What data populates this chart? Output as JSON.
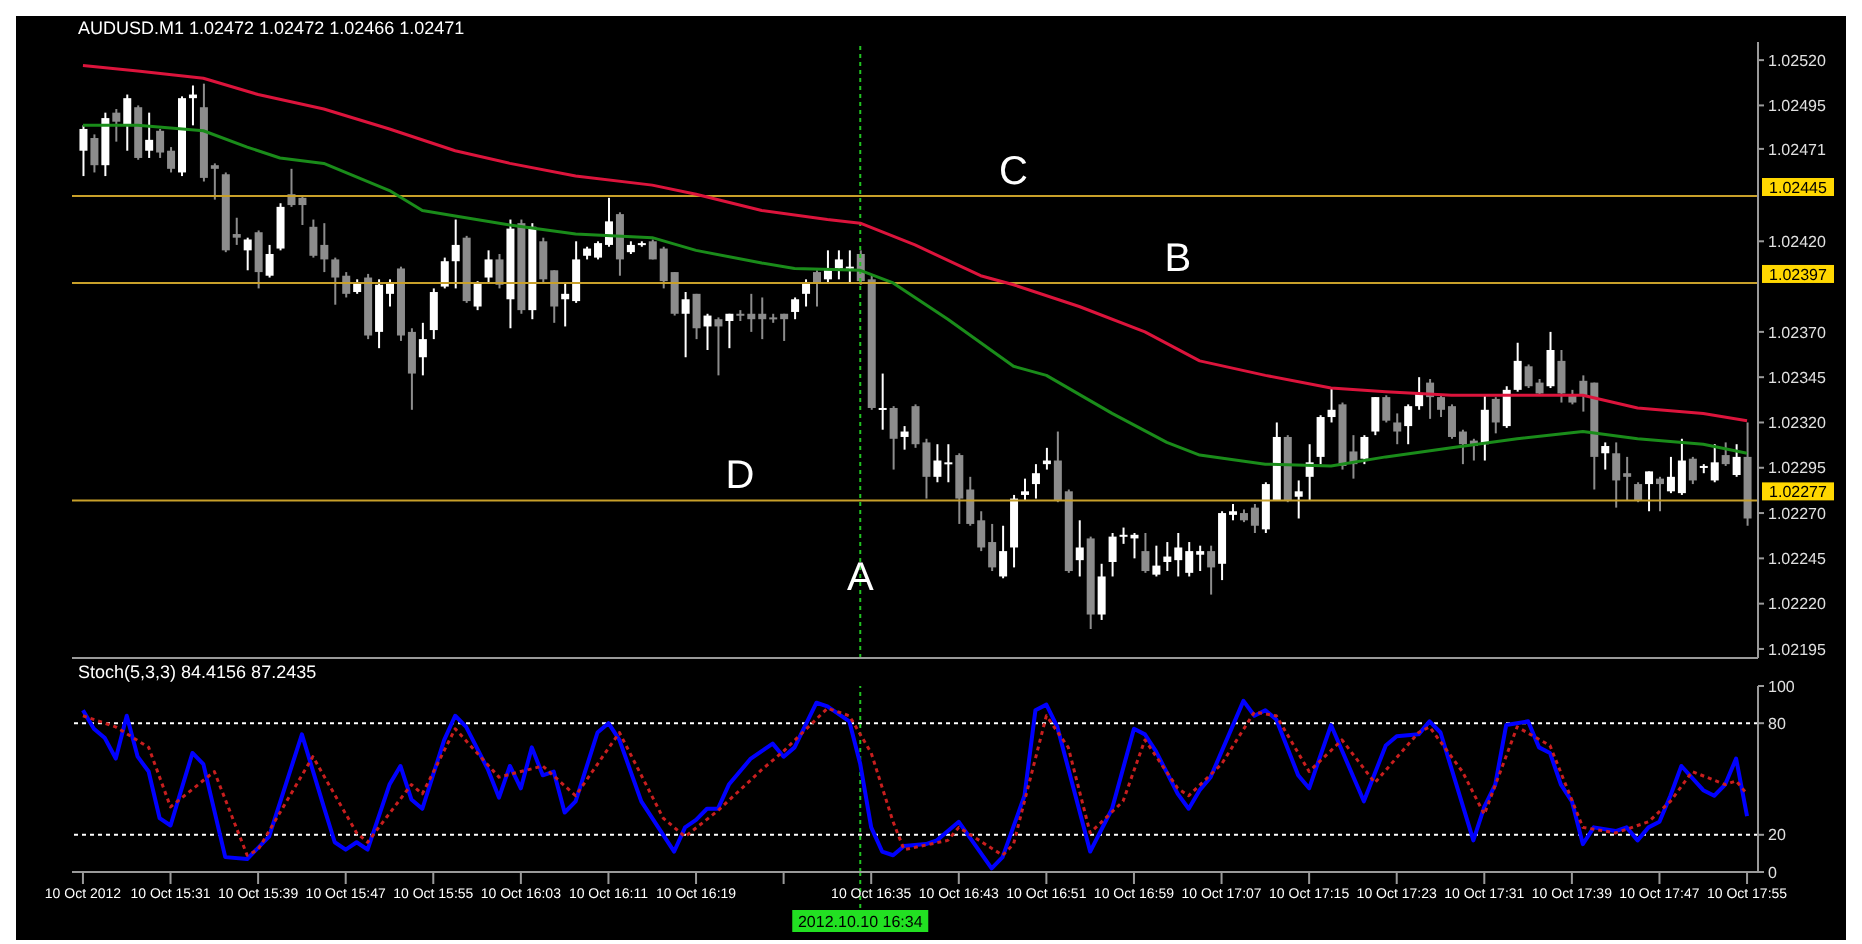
{
  "chart_data": [
    {
      "type": "candlestick",
      "title": "AUDUSD.M1 1.02472 1.02472 1.02466 1.02471",
      "x": [
        "2012-10-10T15:23",
        "2012-10-10T15:24",
        "2012-10-10T15:25",
        "2012-10-10T15:26",
        "2012-10-10T15:27",
        "2012-10-10T15:28",
        "2012-10-10T15:29",
        "2012-10-10T15:30",
        "2012-10-10T15:31",
        "2012-10-10T15:32",
        "2012-10-10T15:33",
        "2012-10-10T15:34",
        "2012-10-10T15:35",
        "2012-10-10T15:36",
        "2012-10-10T15:37",
        "2012-10-10T15:38",
        "2012-10-10T15:39",
        "2012-10-10T15:40",
        "2012-10-10T15:41",
        "2012-10-10T15:42",
        "2012-10-10T15:43",
        "2012-10-10T15:44",
        "2012-10-10T15:45",
        "2012-10-10T15:46",
        "2012-10-10T15:47",
        "2012-10-10T15:48",
        "2012-10-10T15:49",
        "2012-10-10T15:50",
        "2012-10-10T15:51",
        "2012-10-10T15:52",
        "2012-10-10T15:53",
        "2012-10-10T15:54",
        "2012-10-10T15:55",
        "2012-10-10T15:56",
        "2012-10-10T15:57",
        "2012-10-10T15:58",
        "2012-10-10T15:59",
        "2012-10-10T16:00",
        "2012-10-10T16:01",
        "2012-10-10T16:02",
        "2012-10-10T16:03",
        "2012-10-10T16:04",
        "2012-10-10T16:05",
        "2012-10-10T16:06",
        "2012-10-10T16:07",
        "2012-10-10T16:08",
        "2012-10-10T16:09",
        "2012-10-10T16:10",
        "2012-10-10T16:11",
        "2012-10-10T16:12",
        "2012-10-10T16:13",
        "2012-10-10T16:14",
        "2012-10-10T16:15",
        "2012-10-10T16:16",
        "2012-10-10T16:17",
        "2012-10-10T16:18",
        "2012-10-10T16:19",
        "2012-10-10T16:20",
        "2012-10-10T16:21",
        "2012-10-10T16:22",
        "2012-10-10T16:23",
        "2012-10-10T16:24",
        "2012-10-10T16:25",
        "2012-10-10T16:26",
        "2012-10-10T16:27",
        "2012-10-10T16:28",
        "2012-10-10T16:29",
        "2012-10-10T16:30",
        "2012-10-10T16:31",
        "2012-10-10T16:32",
        "2012-10-10T16:33",
        "2012-10-10T16:34",
        "2012-10-10T16:35",
        "2012-10-10T16:36",
        "2012-10-10T16:37",
        "2012-10-10T16:38",
        "2012-10-10T16:39",
        "2012-10-10T16:40",
        "2012-10-10T16:41",
        "2012-10-10T16:42",
        "2012-10-10T16:43",
        "2012-10-10T16:44",
        "2012-10-10T16:45",
        "2012-10-10T16:46",
        "2012-10-10T16:47",
        "2012-10-10T16:48",
        "2012-10-10T16:49",
        "2012-10-10T16:50",
        "2012-10-10T16:51",
        "2012-10-10T16:52",
        "2012-10-10T16:53",
        "2012-10-10T16:54",
        "2012-10-10T16:55",
        "2012-10-10T16:56",
        "2012-10-10T16:57",
        "2012-10-10T16:58",
        "2012-10-10T16:59",
        "2012-10-10T17:00",
        "2012-10-10T17:01",
        "2012-10-10T17:02",
        "2012-10-10T17:03",
        "2012-10-10T17:04",
        "2012-10-10T17:05",
        "2012-10-10T17:06",
        "2012-10-10T17:07",
        "2012-10-10T17:08",
        "2012-10-10T17:09",
        "2012-10-10T17:10",
        "2012-10-10T17:11",
        "2012-10-10T17:12",
        "2012-10-10T17:13",
        "2012-10-10T17:14",
        "2012-10-10T17:15",
        "2012-10-10T17:16",
        "2012-10-10T17:17",
        "2012-10-10T17:18",
        "2012-10-10T17:19",
        "2012-10-10T17:20",
        "2012-10-10T17:21",
        "2012-10-10T17:22",
        "2012-10-10T17:23",
        "2012-10-10T17:24",
        "2012-10-10T17:25",
        "2012-10-10T17:26",
        "2012-10-10T17:27",
        "2012-10-10T17:28",
        "2012-10-10T17:29",
        "2012-10-10T17:30",
        "2012-10-10T17:31",
        "2012-10-10T17:32",
        "2012-10-10T17:33",
        "2012-10-10T17:34",
        "2012-10-10T17:35",
        "2012-10-10T17:36",
        "2012-10-10T17:37",
        "2012-10-10T17:38",
        "2012-10-10T17:39",
        "2012-10-10T17:40",
        "2012-10-10T17:41",
        "2012-10-10T17:42",
        "2012-10-10T17:43",
        "2012-10-10T17:44",
        "2012-10-10T17:45",
        "2012-10-10T17:46",
        "2012-10-10T17:47",
        "2012-10-10T17:48",
        "2012-10-10T17:49",
        "2012-10-10T17:50",
        "2012-10-10T17:51",
        "2012-10-10T17:52",
        "2012-10-10T17:53",
        "2012-10-10T17:54",
        "2012-10-10T17:55"
      ],
      "ohlc": [
        [
          1.0247,
          1.02484,
          1.02456,
          1.02482
        ],
        [
          1.02477,
          1.02479,
          1.02458,
          1.02462
        ],
        [
          1.02462,
          1.02491,
          1.02456,
          1.02488
        ],
        [
          1.02491,
          1.02493,
          1.02475,
          1.02486
        ],
        [
          1.02484,
          1.02501,
          1.0247,
          1.02499
        ],
        [
          1.02494,
          1.02495,
          1.02465,
          1.02466
        ],
        [
          1.0247,
          1.02491,
          1.02466,
          1.02476
        ],
        [
          1.02481,
          1.02482,
          1.02466,
          1.02469
        ],
        [
          1.0247,
          1.02472,
          1.02458,
          1.0246
        ],
        [
          1.02458,
          1.025,
          1.02456,
          1.02499
        ],
        [
          1.02499,
          1.02506,
          1.02484,
          1.02501
        ],
        [
          1.02494,
          1.02507,
          1.02453,
          1.02455
        ],
        [
          1.02462,
          1.02463,
          1.02443,
          1.0246
        ],
        [
          1.02457,
          1.02458,
          1.02414,
          1.02415
        ],
        [
          1.02424,
          1.02433,
          1.02418,
          1.02422
        ],
        [
          1.02415,
          1.02422,
          1.02404,
          1.02421
        ],
        [
          1.02425,
          1.02426,
          1.02394,
          1.02403
        ],
        [
          1.02401,
          1.02418,
          1.024,
          1.02413
        ],
        [
          1.02416,
          1.02441,
          1.02415,
          1.02439
        ],
        [
          1.02446,
          1.0246,
          1.02439,
          1.0244
        ],
        [
          1.02444,
          1.02445,
          1.02429,
          1.0244
        ],
        [
          1.02428,
          1.02432,
          1.02411,
          1.02412
        ],
        [
          1.02418,
          1.0243,
          1.02403,
          1.0241
        ],
        [
          1.0241,
          1.02411,
          1.02385,
          1.024
        ],
        [
          1.02401,
          1.02403,
          1.02389,
          1.02391
        ],
        [
          1.02392,
          1.02399,
          1.02391,
          1.02397
        ],
        [
          1.024,
          1.02402,
          1.02366,
          1.02368
        ],
        [
          1.0237,
          1.02399,
          1.02361,
          1.02396
        ],
        [
          1.02391,
          1.02399,
          1.02384,
          1.02397
        ],
        [
          1.02405,
          1.02406,
          1.02365,
          1.02368
        ],
        [
          1.0237,
          1.02372,
          1.02327,
          1.02347
        ],
        [
          1.02356,
          1.02375,
          1.02346,
          1.02366
        ],
        [
          1.02371,
          1.02394,
          1.02366,
          1.02392
        ],
        [
          1.02395,
          1.02411,
          1.02394,
          1.02409
        ],
        [
          1.02409,
          1.02432,
          1.02394,
          1.02418
        ],
        [
          1.02422,
          1.02423,
          1.02386,
          1.02387
        ],
        [
          1.02384,
          1.02398,
          1.02382,
          1.02397
        ],
        [
          1.024,
          1.02415,
          1.02397,
          1.0241
        ],
        [
          1.0241,
          1.02413,
          1.02394,
          1.02396
        ],
        [
          1.02388,
          1.02432,
          1.02372,
          1.02427
        ],
        [
          1.0243,
          1.02432,
          1.0238,
          1.02382
        ],
        [
          1.02382,
          1.0243,
          1.02377,
          1.02428
        ],
        [
          1.0242,
          1.02422,
          1.02397,
          1.02399
        ],
        [
          1.02404,
          1.02404,
          1.02375,
          1.02384
        ],
        [
          1.02388,
          1.02397,
          1.02373,
          1.02391
        ],
        [
          1.02387,
          1.0242,
          1.02386,
          1.0241
        ],
        [
          1.02412,
          1.02417,
          1.0241,
          1.02416
        ],
        [
          1.02411,
          1.0242,
          1.0241,
          1.02419
        ],
        [
          1.02418,
          1.02444,
          1.02417,
          1.02431
        ],
        [
          1.02435,
          1.02436,
          1.02401,
          1.0241
        ],
        [
          1.02414,
          1.0242,
          1.02413,
          1.02418
        ],
        [
          1.02418,
          1.0242,
          1.02417,
          1.02419
        ],
        [
          1.0242,
          1.02421,
          1.0241,
          1.0241
        ],
        [
          1.02416,
          1.02417,
          1.02394,
          1.02398
        ],
        [
          1.02403,
          1.02403,
          1.02379,
          1.0238
        ],
        [
          1.0238,
          1.02392,
          1.02356,
          1.02388
        ],
        [
          1.02391,
          1.02391,
          1.02366,
          1.02372
        ],
        [
          1.02373,
          1.0238,
          1.0236,
          1.02379
        ],
        [
          1.02377,
          1.02378,
          1.02346,
          1.02373
        ],
        [
          1.02376,
          1.0238,
          1.02361,
          1.0238
        ],
        [
          1.0238,
          1.02382,
          1.02376,
          1.02379
        ],
        [
          1.0238,
          1.02391,
          1.0237,
          1.02377
        ],
        [
          1.0238,
          1.02389,
          1.02366,
          1.02377
        ],
        [
          1.02378,
          1.0238,
          1.02375,
          1.02377
        ],
        [
          1.0238,
          1.0238,
          1.02365,
          1.02377
        ],
        [
          1.02381,
          1.02389,
          1.02377,
          1.02388
        ],
        [
          1.02391,
          1.02399,
          1.02384,
          1.02397
        ],
        [
          1.02403,
          1.02404,
          1.02384,
          1.02397
        ],
        [
          1.02399,
          1.02415,
          1.02397,
          1.02405
        ],
        [
          1.02405,
          1.02415,
          1.02399,
          1.0241
        ],
        [
          1.02405,
          1.02415,
          1.02397,
          1.02406
        ],
        [
          1.02413,
          1.02415,
          1.02396,
          1.02398
        ],
        [
          1.02399,
          1.02401,
          1.02327,
          1.02328
        ],
        [
          1.02327,
          1.02347,
          1.02316,
          1.02328
        ],
        [
          1.02328,
          1.02329,
          1.02294,
          1.02311
        ],
        [
          1.02312,
          1.02318,
          1.02305,
          1.02315
        ],
        [
          1.02329,
          1.0233,
          1.02306,
          1.02308
        ],
        [
          1.02309,
          1.02311,
          1.02278,
          1.0229
        ],
        [
          1.0229,
          1.02308,
          1.02287,
          1.02299
        ],
        [
          1.02297,
          1.02308,
          1.02287,
          1.02298
        ],
        [
          1.02302,
          1.02303,
          1.02264,
          1.02278
        ],
        [
          1.02283,
          1.0229,
          1.02263,
          1.02264
        ],
        [
          1.02266,
          1.02271,
          1.02249,
          1.02251
        ],
        [
          1.02254,
          1.02264,
          1.02238,
          1.0224
        ],
        [
          1.02235,
          1.02263,
          1.02234,
          1.02249
        ],
        [
          1.02251,
          1.0228,
          1.0224,
          1.02278
        ],
        [
          1.0228,
          1.02289,
          1.02277,
          1.02282
        ],
        [
          1.02286,
          1.02297,
          1.02278,
          1.02292
        ],
        [
          1.02297,
          1.02306,
          1.02294,
          1.02299
        ],
        [
          1.02299,
          1.02315,
          1.02276,
          1.02277
        ],
        [
          1.02282,
          1.02283,
          1.02237,
          1.02238
        ],
        [
          1.02244,
          1.02266,
          1.02235,
          1.02251
        ],
        [
          1.02256,
          1.02257,
          1.02206,
          1.02214
        ],
        [
          1.02214,
          1.02242,
          1.02211,
          1.02235
        ],
        [
          1.02243,
          1.02259,
          1.02235,
          1.02257
        ],
        [
          1.02257,
          1.02262,
          1.02253,
          1.02258
        ],
        [
          1.02256,
          1.02259,
          1.02245,
          1.02258
        ],
        [
          1.02249,
          1.02259,
          1.02237,
          1.02238
        ],
        [
          1.02236,
          1.02252,
          1.02235,
          1.02241
        ],
        [
          1.02243,
          1.02254,
          1.02238,
          1.02246
        ],
        [
          1.02244,
          1.02259,
          1.02235,
          1.02251
        ],
        [
          1.02237,
          1.02254,
          1.02235,
          1.02249
        ],
        [
          1.02247,
          1.02252,
          1.02238,
          1.02249
        ],
        [
          1.02249,
          1.02252,
          1.02225,
          1.0224
        ],
        [
          1.02242,
          1.02271,
          1.02233,
          1.0227
        ],
        [
          1.02269,
          1.02275,
          1.02266,
          1.02271
        ],
        [
          1.0227,
          1.02272,
          1.02265,
          1.02266
        ],
        [
          1.02273,
          1.02275,
          1.02259,
          1.02263
        ],
        [
          1.02261,
          1.02287,
          1.02259,
          1.02286
        ],
        [
          1.02277,
          1.0232,
          1.02277,
          1.02312
        ],
        [
          1.02312,
          1.02313,
          1.02276,
          1.02277
        ],
        [
          1.02279,
          1.02288,
          1.02267,
          1.02282
        ],
        [
          1.0229,
          1.02308,
          1.02277,
          1.02298
        ],
        [
          1.02301,
          1.02324,
          1.02297,
          1.02323
        ],
        [
          1.02323,
          1.02339,
          1.0232,
          1.02327
        ],
        [
          1.0233,
          1.02331,
          1.02294,
          1.02296
        ],
        [
          1.02304,
          1.02313,
          1.02289,
          1.02297
        ],
        [
          1.023,
          1.02313,
          1.02297,
          1.02312
        ],
        [
          1.02315,
          1.02334,
          1.02313,
          1.02334
        ],
        [
          1.02334,
          1.02335,
          1.0232,
          1.02321
        ],
        [
          1.0232,
          1.02325,
          1.02308,
          1.02315
        ],
        [
          1.02318,
          1.0233,
          1.02308,
          1.02329
        ],
        [
          1.02329,
          1.02345,
          1.02327,
          1.02336
        ],
        [
          1.02342,
          1.02344,
          1.02322,
          1.02334
        ],
        [
          1.02334,
          1.02335,
          1.02323,
          1.02327
        ],
        [
          1.02329,
          1.0233,
          1.02311,
          1.02312
        ],
        [
          1.02315,
          1.02316,
          1.02297,
          1.02308
        ],
        [
          1.0231,
          1.02311,
          1.02299,
          1.02307
        ],
        [
          1.02308,
          1.02335,
          1.02299,
          1.02327
        ],
        [
          1.02333,
          1.02334,
          1.02314,
          1.0232
        ],
        [
          1.02318,
          1.0234,
          1.02317,
          1.02338
        ],
        [
          1.02338,
          1.02364,
          1.02337,
          1.02354
        ],
        [
          1.02351,
          1.02352,
          1.02339,
          1.0234
        ],
        [
          1.02342,
          1.02344,
          1.02335,
          1.02336
        ],
        [
          1.0234,
          1.0237,
          1.02339,
          1.0236
        ],
        [
          1.02354,
          1.0236,
          1.02331,
          1.02336
        ],
        [
          1.02335,
          1.02338,
          1.0233,
          1.02331
        ],
        [
          1.02343,
          1.02346,
          1.02326,
          1.02335
        ],
        [
          1.02342,
          1.02342,
          1.02283,
          1.02301
        ],
        [
          1.02303,
          1.02309,
          1.02294,
          1.02307
        ],
        [
          1.02303,
          1.02309,
          1.02273,
          1.02288
        ],
        [
          1.02292,
          1.02301,
          1.02277,
          1.0229
        ],
        [
          1.02286,
          1.02287,
          1.02276,
          1.02277
        ],
        [
          1.02286,
          1.02293,
          1.02271,
          1.02293
        ],
        [
          1.02289,
          1.0229,
          1.02271,
          1.02286
        ],
        [
          1.02282,
          1.02301,
          1.02281,
          1.0229
        ],
        [
          1.02281,
          1.02311,
          1.0228,
          1.02299
        ],
        [
          1.023,
          1.02301,
          1.02286,
          1.02288
        ],
        [
          1.02295,
          1.02297,
          1.02292,
          1.02296
        ],
        [
          1.02288,
          1.02308,
          1.02287,
          1.02298
        ],
        [
          1.02302,
          1.02309,
          1.02296,
          1.02297
        ],
        [
          1.02291,
          1.02308,
          1.0229,
          1.02301
        ],
        [
          1.02301,
          1.0232,
          1.02263,
          1.02267
        ]
      ],
      "series": [
        {
          "type": "line",
          "color": "#dc143c",
          "x": [
            "2012-10-10T15:23",
            "2012-10-10T15:28",
            "2012-10-10T15:34",
            "2012-10-10T15:39",
            "2012-10-10T15:45",
            "2012-10-10T15:51",
            "2012-10-10T15:57",
            "2012-10-10T16:02",
            "2012-10-10T16:08",
            "2012-10-10T16:15",
            "2012-10-10T16:19",
            "2012-10-10T16:25",
            "2012-10-10T16:31",
            "2012-10-10T16:34",
            "2012-10-10T16:39",
            "2012-10-10T16:45",
            "2012-10-10T16:48",
            "2012-10-10T16:54",
            "2012-10-10T17:00",
            "2012-10-10T17:05",
            "2012-10-10T17:11",
            "2012-10-10T17:17",
            "2012-10-10T17:22",
            "2012-10-10T17:28",
            "2012-10-10T17:34",
            "2012-10-10T17:40",
            "2012-10-10T17:45",
            "2012-10-10T17:51",
            "2012-10-10T17:55"
          ],
          "values": [
            1.02517,
            1.02514,
            1.0251,
            1.02501,
            1.02493,
            1.02482,
            1.0247,
            1.02463,
            1.02456,
            1.02451,
            1.02446,
            1.02437,
            1.02432,
            1.0243,
            1.02418,
            1.02401,
            1.02396,
            1.02384,
            1.0237,
            1.02354,
            1.02346,
            1.02339,
            1.02337,
            1.02335,
            1.02335,
            1.02335,
            1.02328,
            1.02325,
            1.02321
          ]
        },
        {
          "type": "line",
          "color": "#1a8c1a",
          "x": [
            "2012-10-10T15:23",
            "2012-10-10T15:28",
            "2012-10-10T15:34",
            "2012-10-10T15:38",
            "2012-10-10T15:41",
            "2012-10-10T15:45",
            "2012-10-10T15:51",
            "2012-10-10T15:54",
            "2012-10-10T15:57",
            "2012-10-10T16:02",
            "2012-10-10T16:08",
            "2012-10-10T16:15",
            "2012-10-10T16:19",
            "2012-10-10T16:25",
            "2012-10-10T16:28",
            "2012-10-10T16:34",
            "2012-10-10T16:37",
            "2012-10-10T16:42",
            "2012-10-10T16:48",
            "2012-10-10T16:51",
            "2012-10-10T16:57",
            "2012-10-10T17:02",
            "2012-10-10T17:05",
            "2012-10-10T17:11",
            "2012-10-10T17:17",
            "2012-10-10T17:22",
            "2012-10-10T17:28",
            "2012-10-10T17:34",
            "2012-10-10T17:40",
            "2012-10-10T17:45",
            "2012-10-10T17:51",
            "2012-10-10T17:55"
          ],
          "values": [
            1.02484,
            1.02484,
            1.02481,
            1.02472,
            1.02466,
            1.02463,
            1.02448,
            1.02437,
            1.02434,
            1.02429,
            1.02424,
            1.02422,
            1.02415,
            1.02408,
            1.02405,
            1.02404,
            1.02397,
            1.02377,
            1.02351,
            1.02346,
            1.02325,
            1.02309,
            1.02302,
            1.02297,
            1.02296,
            1.02301,
            1.02306,
            1.02311,
            1.02315,
            1.02311,
            1.02308,
            1.02303
          ]
        }
      ],
      "xlim": [
        "2012-10-10T15:22",
        "2012-10-10T17:56"
      ],
      "ylim": [
        1.0219,
        1.0253
      ],
      "yticks": [
        {
          "value": 1.02195,
          "label": "1.02195"
        },
        {
          "value": 1.0222,
          "label": "1.02220"
        },
        {
          "value": 1.02245,
          "label": "1.02245"
        },
        {
          "value": 1.0227,
          "label": "1.02270"
        },
        {
          "value": 1.02295,
          "label": "1.02295"
        },
        {
          "value": 1.0232,
          "label": "1.02320"
        },
        {
          "value": 1.02345,
          "label": "1.02345"
        },
        {
          "value": 1.0237,
          "label": "1.02370"
        },
        {
          "value": 1.0242,
          "label": "1.02420"
        },
        {
          "value": 1.02471,
          "label": "1.02471"
        },
        {
          "value": 1.02495,
          "label": "1.02495"
        },
        {
          "value": 1.0252,
          "label": "1.02520"
        }
      ],
      "tick_labels": "y",
      "ref_lines": [
        {
          "axis": "y",
          "value": 1.02445,
          "label": "1.02445",
          "color": "#c8a02a"
        },
        {
          "axis": "y",
          "value": 1.02397,
          "label": "1.02397",
          "color": "#c8a02a"
        },
        {
          "axis": "y",
          "value": 1.02277,
          "label": "1.02277",
          "color": "#c8a02a"
        },
        {
          "axis": "x",
          "value": "2012-10-10T16:34",
          "color": "#22c322",
          "line_style": "dotted"
        }
      ],
      "annotations": [
        {
          "text": "C",
          "x": "2012-10-10T16:48",
          "y": 1.02445
        },
        {
          "text": "B",
          "x": "2012-10-10T17:03",
          "y": 1.02397
        },
        {
          "text": "D",
          "x": "2012-10-10T16:23",
          "y": 1.02277
        },
        {
          "text": "A",
          "x": "2012-10-10T16:34",
          "y": 1.02221
        }
      ]
    },
    {
      "type": "line",
      "title": "Stoch(5,3,3) 84.4156 87.2435",
      "series": [
        {
          "color": "#0000ff",
          "line_style": "solid",
          "x": [
            "2012-10-10T15:23",
            "2012-10-10T15:24",
            "2012-10-10T15:25",
            "2012-10-10T15:26",
            "2012-10-10T15:27",
            "2012-10-10T15:28",
            "2012-10-10T15:29",
            "2012-10-10T15:30",
            "2012-10-10T15:31",
            "2012-10-10T15:33",
            "2012-10-10T15:34",
            "2012-10-10T15:36",
            "2012-10-10T15:38",
            "2012-10-10T15:40",
            "2012-10-10T15:43",
            "2012-10-10T15:45",
            "2012-10-10T15:46",
            "2012-10-10T15:47",
            "2012-10-10T15:48",
            "2012-10-10T15:49",
            "2012-10-10T15:51",
            "2012-10-10T15:52",
            "2012-10-10T15:53",
            "2012-10-10T15:54",
            "2012-10-10T15:56",
            "2012-10-10T15:57",
            "2012-10-10T15:58",
            "2012-10-10T16:00",
            "2012-10-10T16:01",
            "2012-10-10T16:02",
            "2012-10-10T16:03",
            "2012-10-10T16:04",
            "2012-10-10T16:05",
            "2012-10-10T16:06",
            "2012-10-10T16:07",
            "2012-10-10T16:08",
            "2012-10-10T16:10",
            "2012-10-10T16:11",
            "2012-10-10T16:12",
            "2012-10-10T16:14",
            "2012-10-10T16:17",
            "2012-10-10T16:18",
            "2012-10-10T16:19",
            "2012-10-10T16:20",
            "2012-10-10T16:21",
            "2012-10-10T16:22",
            "2012-10-10T16:24",
            "2012-10-10T16:25",
            "2012-10-10T16:26",
            "2012-10-10T16:27",
            "2012-10-10T16:28",
            "2012-10-10T16:30",
            "2012-10-10T16:31",
            "2012-10-10T16:33",
            "2012-10-10T16:34",
            "2012-10-10T16:35",
            "2012-10-10T16:36",
            "2012-10-10T16:37",
            "2012-10-10T16:38",
            "2012-10-10T16:40",
            "2012-10-10T16:41",
            "2012-10-10T16:42",
            "2012-10-10T16:43",
            "2012-10-10T16:46",
            "2012-10-10T16:47",
            "2012-10-10T16:49",
            "2012-10-10T16:50",
            "2012-10-10T16:51",
            "2012-10-10T16:52",
            "2012-10-10T16:55",
            "2012-10-10T16:57",
            "2012-10-10T16:59",
            "2012-10-10T17:00",
            "2012-10-10T17:01",
            "2012-10-10T17:03",
            "2012-10-10T17:04",
            "2012-10-10T17:05",
            "2012-10-10T17:06",
            "2012-10-10T17:09",
            "2012-10-10T17:10",
            "2012-10-10T17:11",
            "2012-10-10T17:12",
            "2012-10-10T17:14",
            "2012-10-10T17:15",
            "2012-10-10T17:17",
            "2012-10-10T17:20",
            "2012-10-10T17:22",
            "2012-10-10T17:23",
            "2012-10-10T17:25",
            "2012-10-10T17:26",
            "2012-10-10T17:27",
            "2012-10-10T17:30",
            "2012-10-10T17:31",
            "2012-10-10T17:32",
            "2012-10-10T17:33",
            "2012-10-10T17:35",
            "2012-10-10T17:36",
            "2012-10-10T17:37",
            "2012-10-10T17:38",
            "2012-10-10T17:39",
            "2012-10-10T17:40",
            "2012-10-10T17:41",
            "2012-10-10T17:43",
            "2012-10-10T17:44",
            "2012-10-10T17:45",
            "2012-10-10T17:46",
            "2012-10-10T17:47",
            "2012-10-10T17:48",
            "2012-10-10T17:49",
            "2012-10-10T17:51",
            "2012-10-10T17:52",
            "2012-10-10T17:53",
            "2012-10-10T17:54",
            "2012-10-10T17:55"
          ],
          "values": [
            87,
            77,
            72,
            61,
            84,
            62,
            54,
            29,
            25,
            64,
            58,
            8,
            7,
            19,
            74,
            35,
            16,
            12,
            16,
            12,
            47,
            57,
            39,
            34,
            71,
            84,
            78,
            55,
            40,
            57,
            45,
            67,
            52,
            54,
            32,
            38,
            75,
            80,
            71,
            38,
            11,
            24,
            28,
            34,
            34,
            47,
            61,
            65,
            69,
            62,
            67,
            91,
            89,
            81,
            58,
            24,
            11,
            9,
            14,
            15,
            17,
            22,
            27,
            2,
            8,
            41,
            87,
            90,
            78,
            11,
            34,
            77,
            74,
            65,
            42,
            34,
            44,
            51,
            92,
            84,
            87,
            82,
            52,
            45,
            79,
            38,
            68,
            73,
            74,
            81,
            75,
            17,
            35,
            47,
            79,
            81,
            67,
            64,
            47,
            38,
            15,
            24,
            22,
            24,
            17,
            24,
            27,
            41,
            57,
            44,
            41,
            47,
            61,
            30
          ]
        },
        {
          "color": "#c81e1e",
          "line_style": "dotted",
          "x": [
            "2012-10-10T15:23",
            "2012-10-10T15:26",
            "2012-10-10T15:29",
            "2012-10-10T15:31",
            "2012-10-10T15:35",
            "2012-10-10T15:38",
            "2012-10-10T15:39",
            "2012-10-10T15:44",
            "2012-10-10T15:48",
            "2012-10-10T15:49",
            "2012-10-10T15:53",
            "2012-10-10T15:54",
            "2012-10-10T15:57",
            "2012-10-10T16:01",
            "2012-10-10T16:05",
            "2012-10-10T16:08",
            "2012-10-10T16:12",
            "2012-10-10T16:16",
            "2012-10-10T16:18",
            "2012-10-10T16:21",
            "2012-10-10T16:25",
            "2012-10-10T16:27",
            "2012-10-10T16:31",
            "2012-10-10T16:33",
            "2012-10-10T16:35",
            "2012-10-10T16:37",
            "2012-10-10T16:38",
            "2012-10-10T16:42",
            "2012-10-10T16:43",
            "2012-10-10T16:47",
            "2012-10-10T16:48",
            "2012-10-10T16:51",
            "2012-10-10T16:53",
            "2012-10-10T16:55",
            "2012-10-10T16:58",
            "2012-10-10T17:00",
            "2012-10-10T17:03",
            "2012-10-10T17:04",
            "2012-10-10T17:07",
            "2012-10-10T17:10",
            "2012-10-10T17:12",
            "2012-10-10T17:15",
            "2012-10-10T17:18",
            "2012-10-10T17:21",
            "2012-10-10T17:25",
            "2012-10-10T17:26",
            "2012-10-10T17:29",
            "2012-10-10T17:31",
            "2012-10-10T17:34",
            "2012-10-10T17:37",
            "2012-10-10T17:40",
            "2012-10-10T17:43",
            "2012-10-10T17:46",
            "2012-10-10T17:48",
            "2012-10-10T17:50",
            "2012-10-10T17:53",
            "2012-10-10T17:54",
            "2012-10-10T17:55"
          ],
          "values": [
            84,
            78,
            67,
            35,
            54,
            9,
            12,
            62,
            21,
            16,
            47,
            42,
            77,
            51,
            57,
            41,
            75,
            29,
            19,
            33,
            55,
            65,
            88,
            84,
            64,
            27,
            12,
            17,
            24,
            9,
            15,
            84,
            67,
            21,
            38,
            71,
            45,
            41,
            58,
            86,
            84,
            54,
            71,
            48,
            75,
            78,
            54,
            31,
            78,
            68,
            24,
            21,
            27,
            38,
            54,
            47,
            49,
            42
          ]
        }
      ],
      "xlim": [
        "2012-10-10T15:22",
        "2012-10-10T17:56"
      ],
      "xticks": [
        {
          "value": "2012-10-10T15:23",
          "label": "10 Oct 2012"
        },
        {
          "value": "2012-10-10T15:31",
          "label": "10 Oct 15:31"
        },
        {
          "value": "2012-10-10T15:39",
          "label": "10 Oct 15:39"
        },
        {
          "value": "2012-10-10T15:47",
          "label": "10 Oct 15:47"
        },
        {
          "value": "2012-10-10T15:55",
          "label": "10 Oct 15:55"
        },
        {
          "value": "2012-10-10T16:03",
          "label": "10 Oct 16:03"
        },
        {
          "value": "2012-10-10T16:11",
          "label": "10 Oct 16:11"
        },
        {
          "value": "2012-10-10T16:19",
          "label": "10 Oct 16:19"
        },
        {
          "value": "2012-10-10T16:27",
          "label": null
        },
        {
          "value": "2012-10-10T16:35",
          "label": "10 Oct 16:35"
        },
        {
          "value": "2012-10-10T16:43",
          "label": "10 Oct 16:43"
        },
        {
          "value": "2012-10-10T16:51",
          "label": "10 Oct 16:51"
        },
        {
          "value": "2012-10-10T16:59",
          "label": "10 Oct 16:59"
        },
        {
          "value": "2012-10-10T17:07",
          "label": "10 Oct 17:07"
        },
        {
          "value": "2012-10-10T17:15",
          "label": "10 Oct 17:15"
        },
        {
          "value": "2012-10-10T17:23",
          "label": "10 Oct 17:23"
        },
        {
          "value": "2012-10-10T17:31",
          "label": "10 Oct 17:31"
        },
        {
          "value": "2012-10-10T17:39",
          "label": "10 Oct 17:39"
        },
        {
          "value": "2012-10-10T17:47",
          "label": "10 Oct 17:47"
        },
        {
          "value": "2012-10-10T17:55",
          "label": "10 Oct 17:55"
        }
      ],
      "ylim": [
        0,
        100
      ],
      "yticks": [
        0,
        20,
        80,
        100
      ],
      "ref_lines": [
        {
          "axis": "y",
          "value": 80,
          "color": "#ffffff",
          "line_style": "dotted"
        },
        {
          "axis": "y",
          "value": 20,
          "color": "#ffffff",
          "line_style": "dotted"
        },
        {
          "axis": "x",
          "value": "2012-10-10T16:34",
          "label": "2012.10.10 16:34",
          "color": "#22c322",
          "line_style": "dotted"
        }
      ]
    }
  ]
}
